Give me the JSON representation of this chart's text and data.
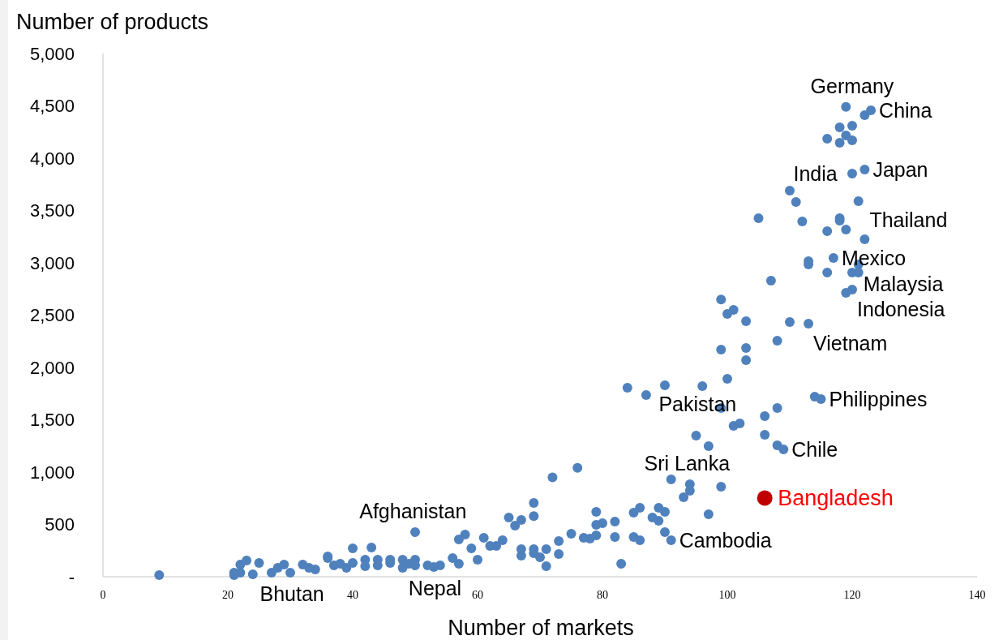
{
  "chart_data": {
    "type": "scatter",
    "xlabel": "Number of markets",
    "ylabel": "Number of products",
    "xlim": [
      0,
      140
    ],
    "xticks": [
      0,
      20,
      40,
      60,
      80,
      100,
      120,
      140
    ],
    "ylim": [
      0,
      5000
    ],
    "yticks": [
      {
        "value": 0,
        "label": "-"
      },
      {
        "value": 500,
        "label": "500"
      },
      {
        "value": 1000,
        "label": "1,000"
      },
      {
        "value": 1500,
        "label": "1,500"
      },
      {
        "value": 2000,
        "label": "2,000"
      },
      {
        "value": 2500,
        "label": "2,500"
      },
      {
        "value": 3000,
        "label": "3,000"
      },
      {
        "value": 3500,
        "label": "3,500"
      },
      {
        "value": 4000,
        "label": "4,000"
      },
      {
        "value": 4500,
        "label": "4,500"
      },
      {
        "value": 5000,
        "label": "5,000"
      }
    ],
    "grid": false,
    "marker": "circle",
    "series": [
      {
        "color": "#4f81bd",
        "x": [
          119,
          123,
          122,
          118,
          120,
          119,
          116,
          118,
          120,
          122,
          120,
          110,
          111,
          121,
          105,
          112,
          118,
          118,
          116,
          119,
          122,
          117,
          113,
          113,
          121,
          120,
          121,
          116,
          107,
          120,
          119,
          99,
          100,
          101,
          103,
          110,
          113,
          108,
          99,
          103,
          103,
          100,
          84,
          87,
          90,
          96,
          114,
          115,
          99,
          108,
          106,
          101,
          102,
          95,
          97,
          106,
          108,
          109,
          91,
          94,
          94,
          99,
          93,
          72,
          76,
          69,
          69,
          65,
          67,
          66,
          79,
          85,
          86,
          89,
          90,
          88,
          89,
          79,
          80,
          82,
          97,
          90,
          91,
          75,
          77,
          78,
          79,
          82,
          85,
          86,
          73,
          73,
          71,
          71,
          69,
          69,
          70,
          67,
          67,
          64,
          63,
          62,
          61,
          60,
          59,
          58,
          57,
          57,
          56,
          54,
          83,
          9,
          50,
          40,
          43,
          36,
          23,
          25,
          22,
          29,
          32,
          21,
          21,
          22,
          24,
          27,
          28,
          30,
          33,
          34,
          36,
          37,
          38,
          39,
          40,
          42,
          42,
          44,
          44,
          46,
          46,
          48,
          48,
          49,
          50,
          50,
          52,
          53
        ],
        "values": [
          4490,
          4457,
          4411,
          4295,
          4310,
          4217,
          4186,
          4147,
          4170,
          3891,
          3853,
          3690,
          3581,
          3589,
          3426,
          3395,
          3426,
          3403,
          3302,
          3318,
          3225,
          3047,
          3016,
          2984,
          2984,
          2907,
          2907,
          2907,
          2829,
          2744,
          2713,
          2650,
          2512,
          2550,
          2442,
          2434,
          2419,
          2256,
          2170,
          2186,
          2070,
          1891,
          1806,
          1736,
          1829,
          1822,
          1721,
          1698,
          1612,
          1612,
          1535,
          1442,
          1465,
          1349,
          1248,
          1357,
          1256,
          1217,
          930,
          884,
          822,
          860,
          760,
          950,
          1040,
          705,
          580,
          566,
          543,
          488,
          620,
          612,
          659,
          659,
          620,
          566,
          535,
          496,
          512,
          527,
          597,
          426,
          349,
          411,
          372,
          364,
          395,
          380,
          380,
          349,
          341,
          217,
          264,
          101,
          264,
          225,
          186,
          264,
          202,
          349,
          295,
          295,
          372,
          163,
          271,
          403,
          357,
          124,
          178,
          109,
          124,
          16,
          426,
          271,
          279,
          194,
          155,
          132,
          116,
          116,
          116,
          39,
          16,
          39,
          23,
          39,
          85,
          39,
          85,
          70,
          178,
          109,
          124,
          85,
          132,
          101,
          163,
          163,
          109,
          132,
          163,
          85,
          163,
          124,
          109,
          163,
          109,
          93
        ]
      },
      {
        "name": "Bangladesh",
        "color": "#c00000",
        "x": [
          106
        ],
        "values": [
          752
        ]
      }
    ],
    "annotations": [
      {
        "text": "Germany",
        "x": 119,
        "y": 4490
      },
      {
        "text": "China",
        "x": 123,
        "y": 4457
      },
      {
        "text": "Japan",
        "x": 122,
        "y": 3891
      },
      {
        "text": "India",
        "x": 120,
        "y": 3853
      },
      {
        "text": "Mexico",
        "x": 117,
        "y": 3047
      },
      {
        "text": "Thailand",
        "x": 122,
        "y": 3225
      },
      {
        "text": "Malaysia",
        "x": 121,
        "y": 2984
      },
      {
        "text": "Indonesia",
        "x": 120,
        "y": 2744
      },
      {
        "text": "Vietnam",
        "x": 113,
        "y": 2419
      },
      {
        "text": "Philippines",
        "x": 115,
        "y": 1698
      },
      {
        "text": "Pakistan",
        "x": 102,
        "y": 1465
      },
      {
        "text": "Chile",
        "x": 109,
        "y": 1217
      },
      {
        "text": "Sri Lanka",
        "x": 94,
        "y": 884
      },
      {
        "text": "Cambodia",
        "x": 91,
        "y": 349
      },
      {
        "text": "Afghanistan",
        "x": 50,
        "y": 426
      },
      {
        "text": "Nepal",
        "x": 53,
        "y": 93
      },
      {
        "text": "Bhutan",
        "x": 30,
        "y": 39
      }
    ]
  }
}
